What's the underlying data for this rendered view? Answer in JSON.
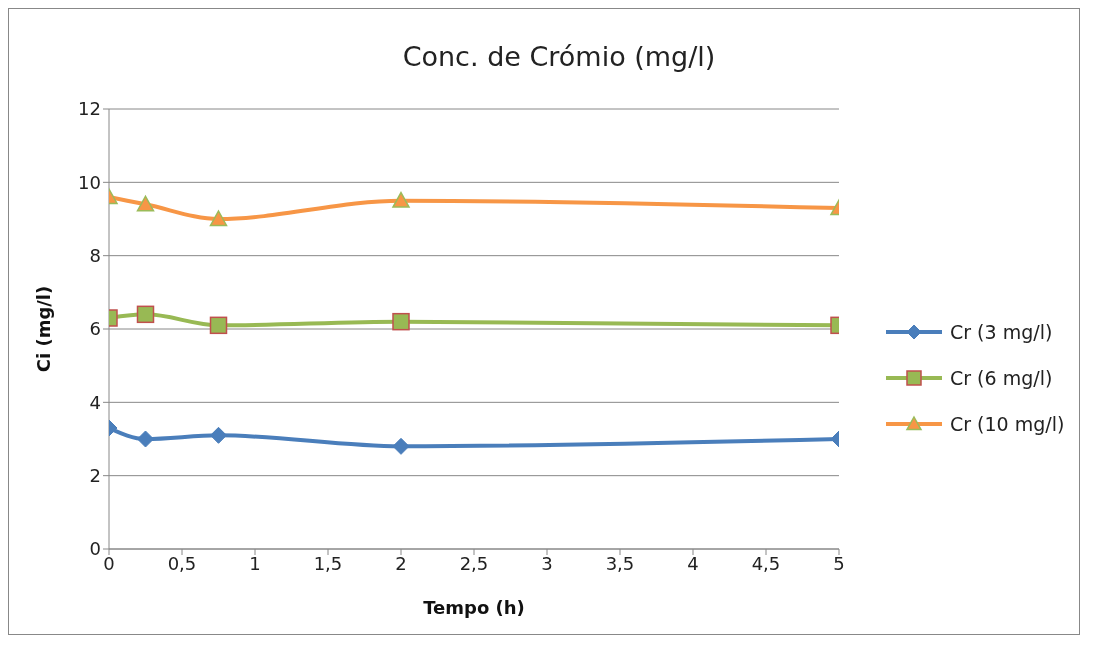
{
  "chart_data": {
    "type": "line",
    "title": "Conc. de Crómio (mg/l)",
    "xlabel": "Tempo (h)",
    "ylabel": "Ci (mg/l)",
    "x": [
      0,
      0.25,
      0.75,
      2,
      5
    ],
    "series": [
      {
        "name": "Cr (3 mg/l)",
        "color": "#4a7ebb",
        "marker": "diamond",
        "values": [
          3.3,
          3.0,
          3.1,
          2.8,
          3.0
        ]
      },
      {
        "name": "Cr (6 mg/l)",
        "color": "#98b954",
        "marker": "square",
        "values": [
          6.3,
          6.4,
          6.1,
          6.2,
          6.1
        ]
      },
      {
        "name": "Cr (10 mg/l)",
        "color": "#f79646",
        "marker": "triangle",
        "values": [
          9.6,
          9.4,
          9.0,
          9.5,
          9.3
        ]
      }
    ],
    "xlim": [
      0,
      5
    ],
    "xticks": [
      0,
      {
        "value": 0.5,
        "label": "0,5"
      },
      1,
      {
        "value": 1.5,
        "label": "1,5"
      },
      2,
      {
        "value": 2.5,
        "label": "2,5"
      },
      3,
      {
        "value": 3.5,
        "label": "3,5"
      },
      4,
      {
        "value": 4.5,
        "label": "4,5"
      },
      5
    ],
    "ylim": [
      0,
      12
    ],
    "yticks": [
      0,
      2,
      4,
      6,
      8,
      10,
      12
    ],
    "grid": "y",
    "legend": "right",
    "line_style": "solid"
  }
}
